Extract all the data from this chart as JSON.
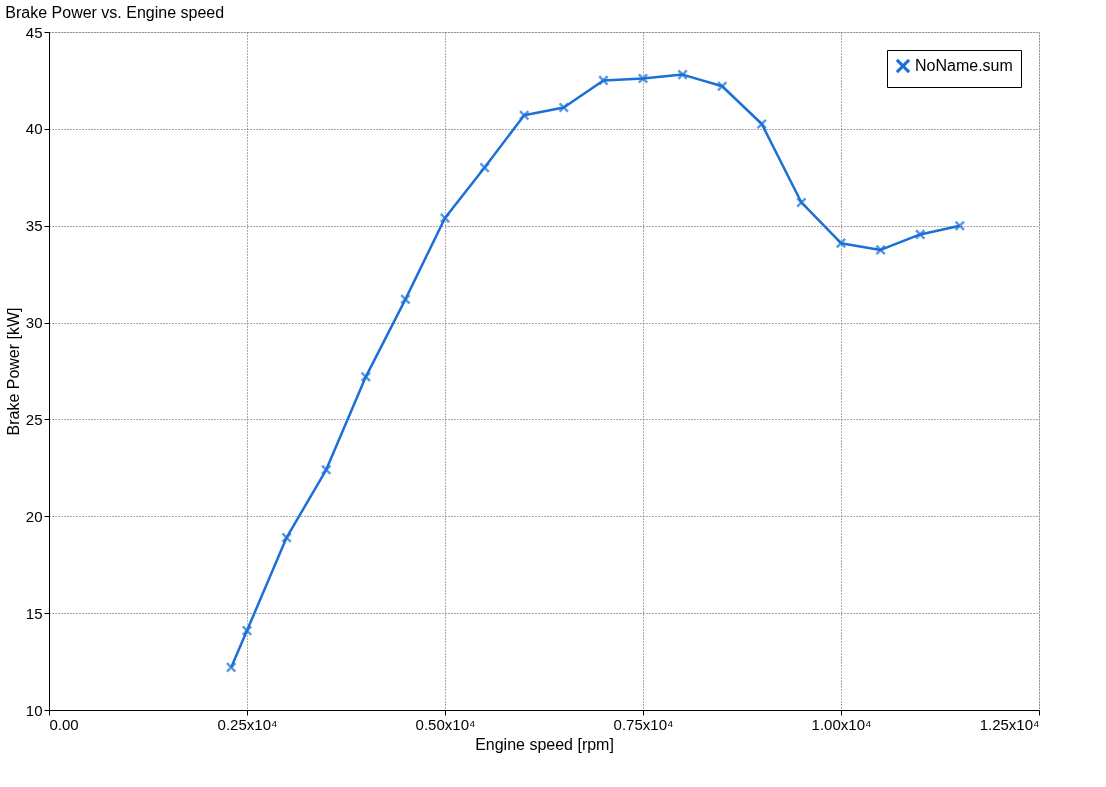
{
  "chart_data": {
    "type": "line",
    "title": "Brake Power vs. Engine speed",
    "xlabel": "Engine speed  [rpm]",
    "ylabel": "Brake Power  [kW]",
    "x": [
      2300,
      2500,
      3000,
      3500,
      4000,
      4500,
      5000,
      5500,
      6000,
      6500,
      7000,
      7500,
      8000,
      8500,
      9000,
      9500,
      10000,
      10500,
      11000,
      11500
    ],
    "series": [
      {
        "name": "NoName.sum",
        "color": "#1a6fd8",
        "values": [
          12.2,
          14.1,
          18.9,
          22.4,
          27.2,
          31.2,
          35.4,
          38.0,
          40.7,
          41.1,
          42.5,
          42.6,
          42.8,
          42.2,
          40.25,
          36.2,
          34.1,
          33.75,
          34.55,
          35.0
        ]
      }
    ],
    "xlim": [
      0,
      12500
    ],
    "xticks": [
      {
        "value": 0,
        "label": "0.00"
      },
      {
        "value": 2500,
        "label": "0.25x10⁴"
      },
      {
        "value": 5000,
        "label": "0.50x10⁴"
      },
      {
        "value": 7500,
        "label": "0.75x10⁴"
      },
      {
        "value": 10000,
        "label": "1.00x10⁴"
      },
      {
        "value": 12500,
        "label": "1.25x10⁴"
      }
    ],
    "ylim": [
      10,
      45
    ],
    "yticks": [
      10,
      15,
      20,
      25,
      30,
      35,
      40,
      45
    ],
    "grid": true,
    "legend": "top right",
    "marker": "cross",
    "line_style": "solid"
  }
}
